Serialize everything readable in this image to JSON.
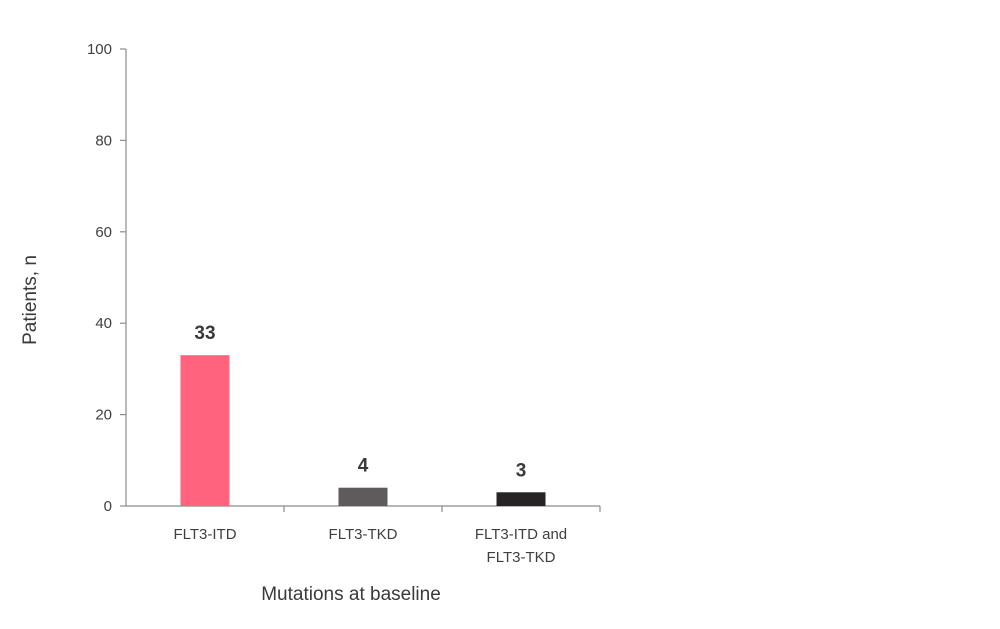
{
  "chart_data": {
    "type": "bar",
    "title": "",
    "xlabel": "Mutations at baseline",
    "ylabel": "Patients, n",
    "ylim": [
      0,
      100
    ],
    "yticks": [
      0,
      20,
      40,
      60,
      80,
      100
    ],
    "categories": [
      [
        "FLT3-ITD"
      ],
      [
        "FLT3-TKD"
      ],
      [
        "FLT3-ITD and",
        "FLT3-TKD"
      ]
    ],
    "values": [
      33,
      4,
      3
    ],
    "data_labels": [
      "33",
      "4",
      "3"
    ],
    "colors": [
      "#ff637e",
      "#5e5b5c",
      "#262425"
    ],
    "grid": false,
    "legend": "none"
  }
}
